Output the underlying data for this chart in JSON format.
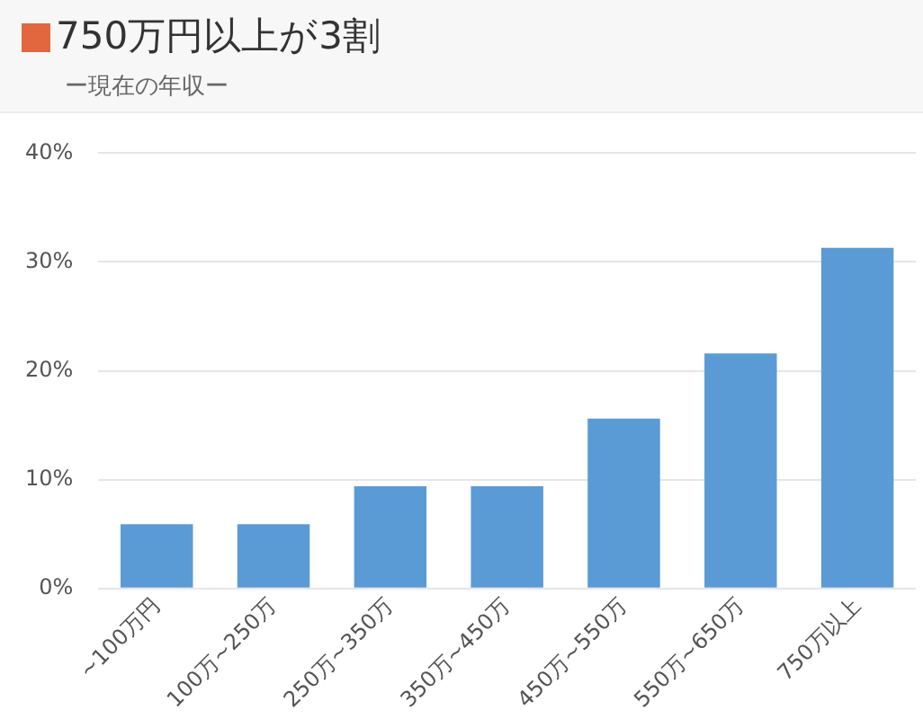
{
  "chart_data": {
    "type": "bar",
    "title": "750万円以上が3割",
    "subtitle": "ー現在の年収ー",
    "categories": [
      "~100万円",
      "100万~250万",
      "250万~350万",
      "350万~450万",
      "450万~550万",
      "550万~650万",
      "750万以上"
    ],
    "values": [
      5.9,
      5.9,
      9.4,
      9.4,
      15.6,
      21.6,
      31.3
    ],
    "color": "#5b9bd5",
    "ylim": [
      0,
      40
    ],
    "yticks": [
      {
        "value": 0,
        "label": "0%"
      },
      {
        "value": 10,
        "label": "10%"
      },
      {
        "value": 20,
        "label": "20%"
      },
      {
        "value": 30,
        "label": "30%"
      },
      {
        "value": 40,
        "label": "40%"
      }
    ],
    "grid": "y",
    "legend": false
  }
}
